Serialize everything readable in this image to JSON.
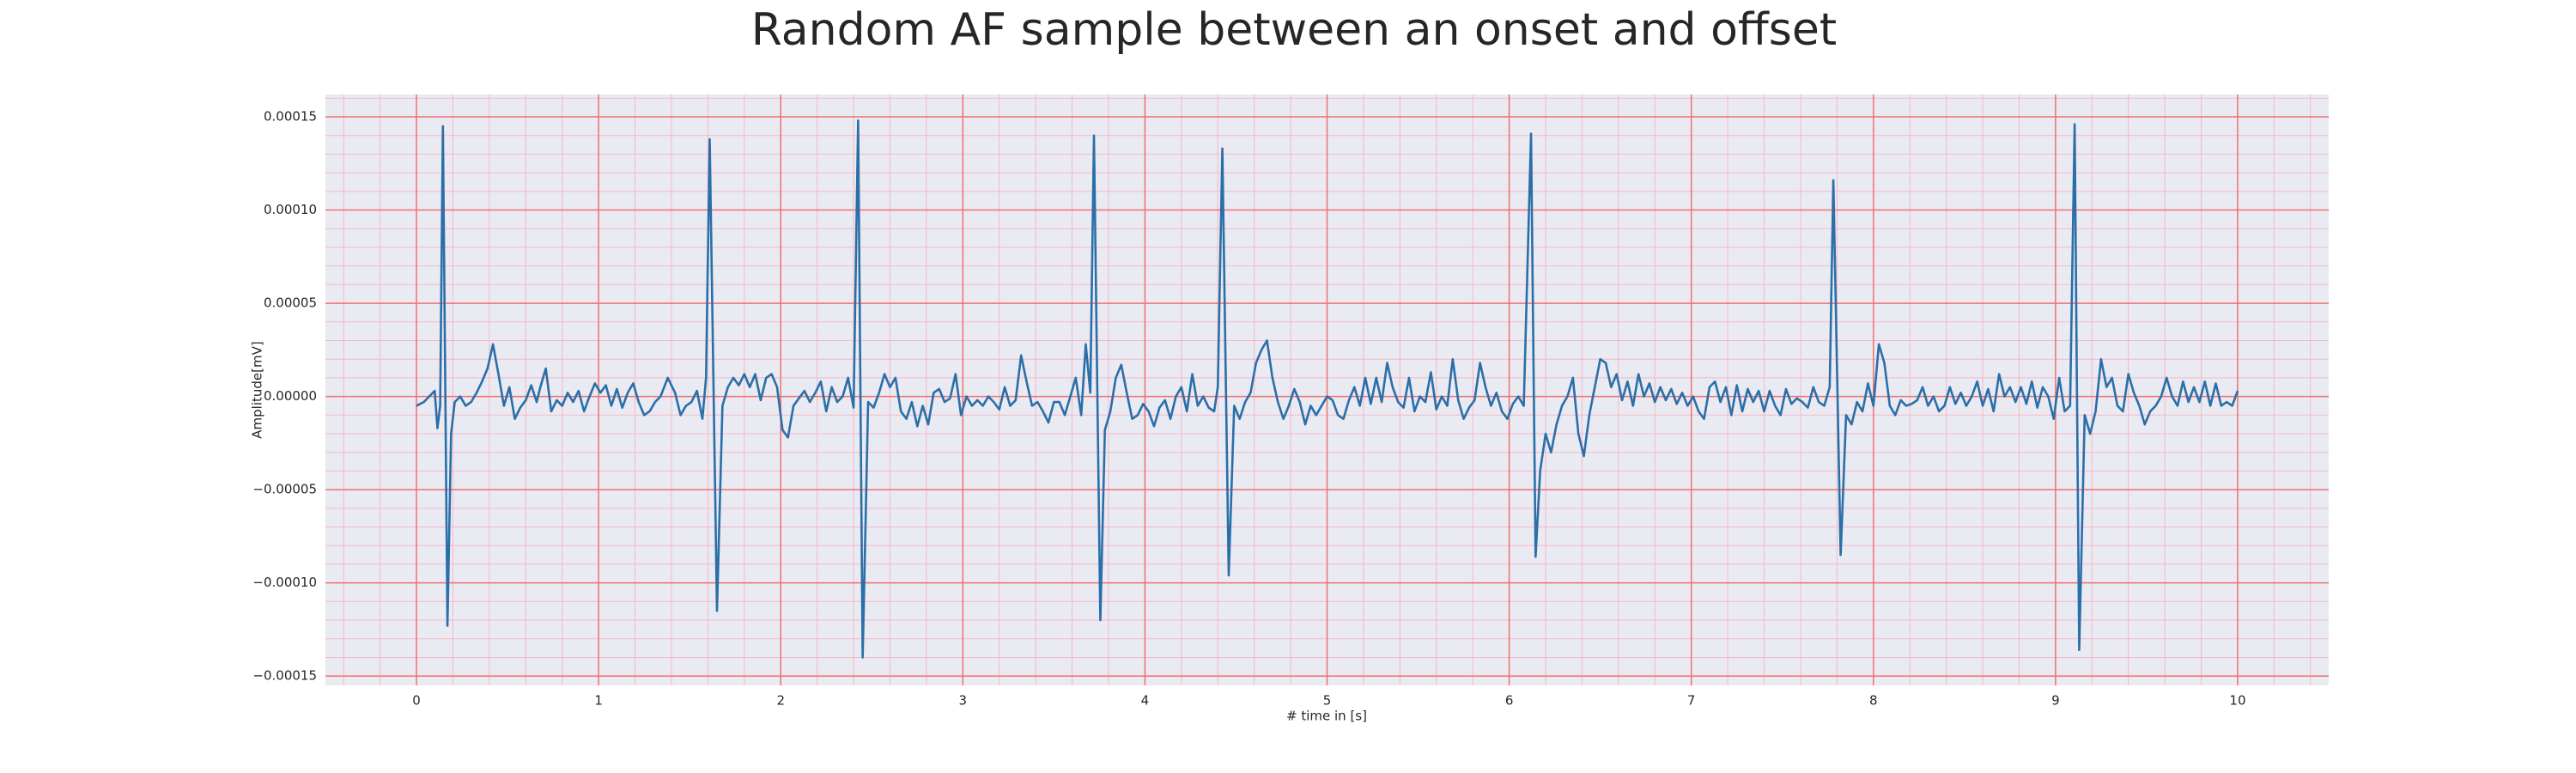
{
  "chart_data": {
    "type": "line",
    "title": "Random AF sample between an onset and offset",
    "xlabel": "# time in [s]",
    "ylabel": "Amplitude[mV]",
    "color": "#2a6fa8",
    "grid": true,
    "minor_grid": true,
    "xlim": [
      -0.5,
      10.5
    ],
    "ylim": [
      -0.000155,
      0.000162
    ],
    "xticks": [
      0,
      1,
      2,
      3,
      4,
      5,
      6,
      7,
      8,
      9,
      10
    ],
    "yticks": [
      {
        "value": -0.00015,
        "label": "−0.00015"
      },
      {
        "value": -0.0001,
        "label": "−0.00010"
      },
      {
        "value": -5e-05,
        "label": "−0.00005"
      },
      {
        "value": 0,
        "label": "0.00000"
      },
      {
        "value": 5e-05,
        "label": "0.00005"
      },
      {
        "value": 0.0001,
        "label": "0.00010"
      },
      {
        "value": 0.00015,
        "label": "0.00015"
      }
    ],
    "x": [
      0,
      0.04,
      0.07,
      0.1,
      0.115,
      0.13,
      0.145,
      0.17,
      0.19,
      0.21,
      0.24,
      0.27,
      0.3,
      0.33,
      0.36,
      0.39,
      0.42,
      0.45,
      0.48,
      0.51,
      0.54,
      0.57,
      0.6,
      0.63,
      0.66,
      0.68,
      0.71,
      0.74,
      0.77,
      0.8,
      0.83,
      0.86,
      0.89,
      0.92,
      0.95,
      0.98,
      1.01,
      1.04,
      1.07,
      1.1,
      1.13,
      1.16,
      1.19,
      1.22,
      1.25,
      1.28,
      1.31,
      1.34,
      1.38,
      1.42,
      1.45,
      1.48,
      1.51,
      1.54,
      1.57,
      1.59,
      1.61,
      1.65,
      1.68,
      1.71,
      1.74,
      1.77,
      1.8,
      1.83,
      1.86,
      1.89,
      1.92,
      1.95,
      1.98,
      2.01,
      2.04,
      2.07,
      2.1,
      2.13,
      2.16,
      2.19,
      2.22,
      2.25,
      2.28,
      2.31,
      2.34,
      2.37,
      2.4,
      2.425,
      2.45,
      2.48,
      2.51,
      2.54,
      2.57,
      2.6,
      2.63,
      2.66,
      2.69,
      2.72,
      2.75,
      2.78,
      2.81,
      2.84,
      2.87,
      2.9,
      2.93,
      2.96,
      2.99,
      3.02,
      3.05,
      3.08,
      3.11,
      3.14,
      3.17,
      3.2,
      3.23,
      3.26,
      3.29,
      3.32,
      3.35,
      3.38,
      3.41,
      3.44,
      3.47,
      3.5,
      3.53,
      3.56,
      3.59,
      3.62,
      3.65,
      3.675,
      3.7,
      3.72,
      3.755,
      3.78,
      3.81,
      3.84,
      3.87,
      3.9,
      3.93,
      3.96,
      3.99,
      4.02,
      4.05,
      4.08,
      4.11,
      4.14,
      4.17,
      4.2,
      4.23,
      4.26,
      4.29,
      4.32,
      4.35,
      4.38,
      4.4,
      4.425,
      4.46,
      4.49,
      4.52,
      4.55,
      4.58,
      4.61,
      4.64,
      4.67,
      4.7,
      4.73,
      4.76,
      4.79,
      4.82,
      4.85,
      4.88,
      4.91,
      4.94,
      4.97,
      5,
      5.03,
      5.06,
      5.09,
      5.12,
      5.15,
      5.18,
      5.21,
      5.24,
      5.27,
      5.3,
      5.33,
      5.36,
      5.39,
      5.42,
      5.45,
      5.48,
      5.51,
      5.54,
      5.57,
      5.6,
      5.63,
      5.66,
      5.69,
      5.72,
      5.75,
      5.78,
      5.81,
      5.84,
      5.87,
      5.9,
      5.93,
      5.96,
      5.99,
      6.02,
      6.05,
      6.08,
      6.12,
      6.145,
      6.17,
      6.2,
      6.23,
      6.26,
      6.29,
      6.32,
      6.35,
      6.38,
      6.41,
      6.44,
      6.47,
      6.5,
      6.53,
      6.56,
      6.59,
      6.62,
      6.65,
      6.68,
      6.71,
      6.74,
      6.77,
      6.8,
      6.83,
      6.86,
      6.89,
      6.92,
      6.95,
      6.98,
      7.01,
      7.04,
      7.07,
      7.1,
      7.13,
      7.16,
      7.19,
      7.22,
      7.25,
      7.28,
      7.31,
      7.34,
      7.37,
      7.4,
      7.43,
      7.46,
      7.49,
      7.52,
      7.55,
      7.58,
      7.61,
      7.64,
      7.67,
      7.7,
      7.73,
      7.76,
      7.78,
      7.82,
      7.85,
      7.88,
      7.91,
      7.94,
      7.97,
      8,
      8.03,
      8.06,
      8.09,
      8.12,
      8.15,
      8.18,
      8.21,
      8.24,
      8.27,
      8.3,
      8.33,
      8.36,
      8.39,
      8.42,
      8.45,
      8.48,
      8.51,
      8.54,
      8.57,
      8.6,
      8.63,
      8.66,
      8.69,
      8.72,
      8.75,
      8.78,
      8.81,
      8.84,
      8.87,
      8.9,
      8.93,
      8.96,
      8.99,
      9.02,
      9.05,
      9.08,
      9.105,
      9.13,
      9.16,
      9.19,
      9.22,
      9.25,
      9.28,
      9.31,
      9.34,
      9.37,
      9.4,
      9.43,
      9.46,
      9.49,
      9.52,
      9.55,
      9.58,
      9.61,
      9.64,
      9.67,
      9.7,
      9.73,
      9.76,
      9.79,
      9.82,
      9.85,
      9.88,
      9.91,
      9.94,
      9.97,
      10
    ],
    "values": [
      -5e-06,
      -3e-06,
      0,
      3e-06,
      -1.7e-05,
      -5e-06,
      0.000145,
      -0.000123,
      -2e-05,
      -3e-06,
      0,
      -5e-06,
      -3e-06,
      2e-06,
      8e-06,
      1.5e-05,
      2.8e-05,
      1.2e-05,
      -5e-06,
      5e-06,
      -1.2e-05,
      -6e-06,
      -2e-06,
      6e-06,
      -3e-06,
      5e-06,
      1.5e-05,
      -8e-06,
      -2e-06,
      -5e-06,
      2e-06,
      -3e-06,
      3e-06,
      -8e-06,
      0,
      7e-06,
      2e-06,
      6e-06,
      -5e-06,
      4e-06,
      -6e-06,
      2e-06,
      7e-06,
      -3e-06,
      -1e-05,
      -8e-06,
      -3e-06,
      0,
      1e-05,
      2e-06,
      -1e-05,
      -5e-06,
      -3e-06,
      3e-06,
      -1.2e-05,
      1e-05,
      0.000138,
      -0.000115,
      -5e-06,
      5e-06,
      1e-05,
      6e-06,
      1.2e-05,
      5e-06,
      1.2e-05,
      -2e-06,
      1e-05,
      1.2e-05,
      5e-06,
      -1.8e-05,
      -2.2e-05,
      -5e-06,
      -1e-06,
      3e-06,
      -3e-06,
      2e-06,
      8e-06,
      -8e-06,
      5e-06,
      -3e-06,
      0,
      1e-05,
      -6e-06,
      0.000148,
      -0.00014,
      -3e-06,
      -6e-06,
      2e-06,
      1.2e-05,
      5e-06,
      1e-05,
      -8e-06,
      -1.2e-05,
      -3e-06,
      -1.6e-05,
      -5e-06,
      -1.5e-05,
      2e-06,
      4e-06,
      -3e-06,
      -1e-06,
      1.2e-05,
      -1e-05,
      0,
      -5e-06,
      -2e-06,
      -5e-06,
      0,
      -3e-06,
      -7e-06,
      5e-06,
      -5e-06,
      -2e-06,
      2.2e-05,
      8e-06,
      -5e-06,
      -3e-06,
      -8e-06,
      -1.4e-05,
      -3e-06,
      -3e-06,
      -1e-05,
      0,
      1e-05,
      -1e-05,
      2.8e-05,
      2e-06,
      0.00014,
      -0.00012,
      -1.8e-05,
      -8e-06,
      1e-05,
      1.7e-05,
      2e-06,
      -1.2e-05,
      -1e-05,
      -4e-06,
      -8e-06,
      -1.6e-05,
      -6e-06,
      -2e-06,
      -1.2e-05,
      0,
      5e-06,
      -8e-06,
      1.2e-05,
      -5e-06,
      0,
      -6e-06,
      -8e-06,
      5e-06,
      0.000133,
      -9.6e-05,
      -5e-06,
      -1.2e-05,
      -3e-06,
      2e-06,
      1.8e-05,
      2.5e-05,
      3e-05,
      1e-05,
      -3e-06,
      -1.2e-05,
      -5e-06,
      4e-06,
      -3e-06,
      -1.5e-05,
      -5e-06,
      -1e-05,
      -5e-06,
      0,
      -2e-06,
      -1e-05,
      -1.2e-05,
      -2e-06,
      5e-06,
      -5e-06,
      1e-05,
      -4e-06,
      1e-05,
      -3e-06,
      1.8e-05,
      5e-06,
      -3e-06,
      -6e-06,
      1e-05,
      -8e-06,
      0,
      -3e-06,
      1.3e-05,
      -7e-06,
      0,
      -5e-06,
      2e-05,
      -2e-06,
      -1.2e-05,
      -6e-06,
      -2e-06,
      1.8e-05,
      5e-06,
      -5e-06,
      2e-06,
      -8e-06,
      -1.2e-05,
      -4e-06,
      0,
      -5e-06,
      0.000141,
      -8.6e-05,
      -4e-05,
      -2e-05,
      -3e-05,
      -1.5e-05,
      -5e-06,
      0,
      1e-05,
      -2e-05,
      -3.2e-05,
      -1e-05,
      5e-06,
      2e-05,
      1.8e-05,
      5e-06,
      1.2e-05,
      -2e-06,
      8e-06,
      -5e-06,
      1.2e-05,
      0,
      7e-06,
      -3e-06,
      5e-06,
      -2e-06,
      4e-06,
      -4e-06,
      2e-06,
      -5e-06,
      0,
      -8e-06,
      -1.2e-05,
      5e-06,
      8e-06,
      -3e-06,
      5e-06,
      -1e-05,
      6e-06,
      -8e-06,
      4e-06,
      -3e-06,
      3e-06,
      -8e-06,
      3e-06,
      -5e-06,
      -1e-05,
      4e-06,
      -4e-06,
      -1e-06,
      -3e-06,
      -6e-06,
      5e-06,
      -3e-06,
      -5e-06,
      5e-06,
      0.000116,
      -8.5e-05,
      -1e-05,
      -1.5e-05,
      -3e-06,
      -8e-06,
      7e-06,
      -5e-06,
      2.8e-05,
      1.8e-05,
      -5e-06,
      -1e-05,
      -2e-06,
      -5e-06,
      -4e-06,
      -2e-06,
      5e-06,
      -5e-06,
      0,
      -8e-06,
      -5e-06,
      5e-06,
      -4e-06,
      2e-06,
      -5e-06,
      0,
      8e-06,
      -5e-06,
      4e-06,
      -8e-06,
      1.2e-05,
      0,
      5e-06,
      -3e-06,
      5e-06,
      -4e-06,
      8e-06,
      -6e-06,
      5e-06,
      0,
      -1.2e-05,
      1e-05,
      -8e-06,
      -5e-06,
      0.000146,
      -0.000136,
      -1e-05,
      -2e-05,
      -8e-06,
      2e-05,
      5e-06,
      1e-05,
      -5e-06,
      -8e-06,
      1.2e-05,
      2e-06,
      -5e-06,
      -1.5e-05,
      -8e-06,
      -5e-06,
      0,
      1e-05,
      0,
      -5e-06,
      8e-06,
      -3e-06,
      5e-06,
      -3e-06,
      8e-06,
      -5e-06,
      7e-06,
      -5e-06,
      -3e-06,
      -5e-06,
      3e-06
    ]
  }
}
